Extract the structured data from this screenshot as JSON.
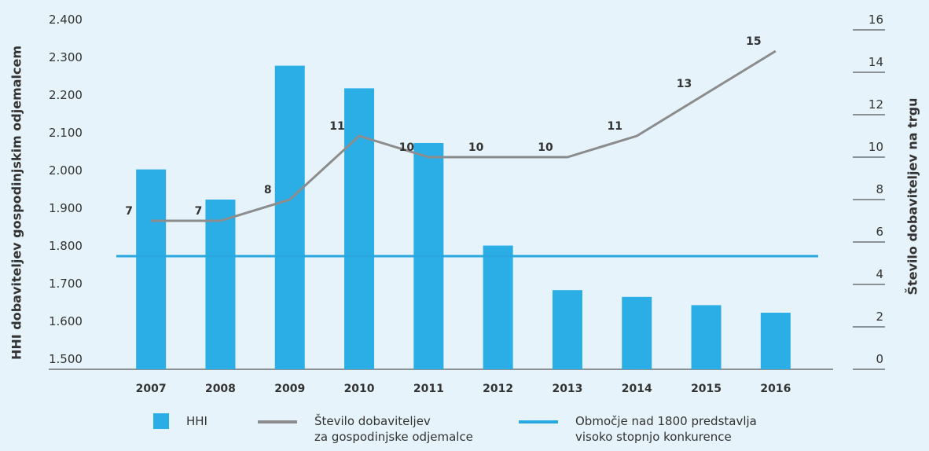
{
  "chart_data": {
    "type": "bar_line",
    "y_label": "HHI dobaviteljev gospodinjskim odjemalcem",
    "y2_label": "Število dobaviteljev na trgu",
    "categories": [
      "2007",
      "2008",
      "2009",
      "2010",
      "2011",
      "2012",
      "2013",
      "2014",
      "2015",
      "2016"
    ],
    "series": [
      {
        "name": "HHI",
        "type": "bar",
        "color": "#2baee6",
        "values": [
          2030,
          1950,
          2305,
          2245,
          2100,
          1828,
          1710,
          1692,
          1670,
          1650
        ]
      },
      {
        "name": "Število dobaviteljev\nza gospodinjske odjemalce",
        "type": "line",
        "axis": "y2",
        "color": "#8c8c8c",
        "values": [
          7,
          7,
          8,
          11,
          10,
          10,
          10,
          11,
          13,
          15
        ]
      }
    ],
    "reference_line": {
      "name": "Območje nad 1800 predstavlja\nvisoko stopnjo konkurence",
      "value": 1800,
      "color": "#29a8e0"
    },
    "ylim": [
      1500,
      2400
    ],
    "yticks": [
      {
        "value": 1500,
        "label": "1.500"
      },
      {
        "value": 1600,
        "label": "1.600"
      },
      {
        "value": 1700,
        "label": "1.700"
      },
      {
        "value": 1800,
        "label": "1.800"
      },
      {
        "value": 1900,
        "label": "1.900"
      },
      {
        "value": 2000,
        "label": "2.000"
      },
      {
        "value": 2100,
        "label": "2.100"
      },
      {
        "value": 2200,
        "label": "2.200"
      },
      {
        "value": 2300,
        "label": "2.300"
      },
      {
        "value": 2400,
        "label": "2.400"
      }
    ],
    "y2lim": [
      0,
      16
    ],
    "y2ticks": [
      0,
      2,
      4,
      6,
      8,
      10,
      12,
      14,
      16
    ]
  }
}
